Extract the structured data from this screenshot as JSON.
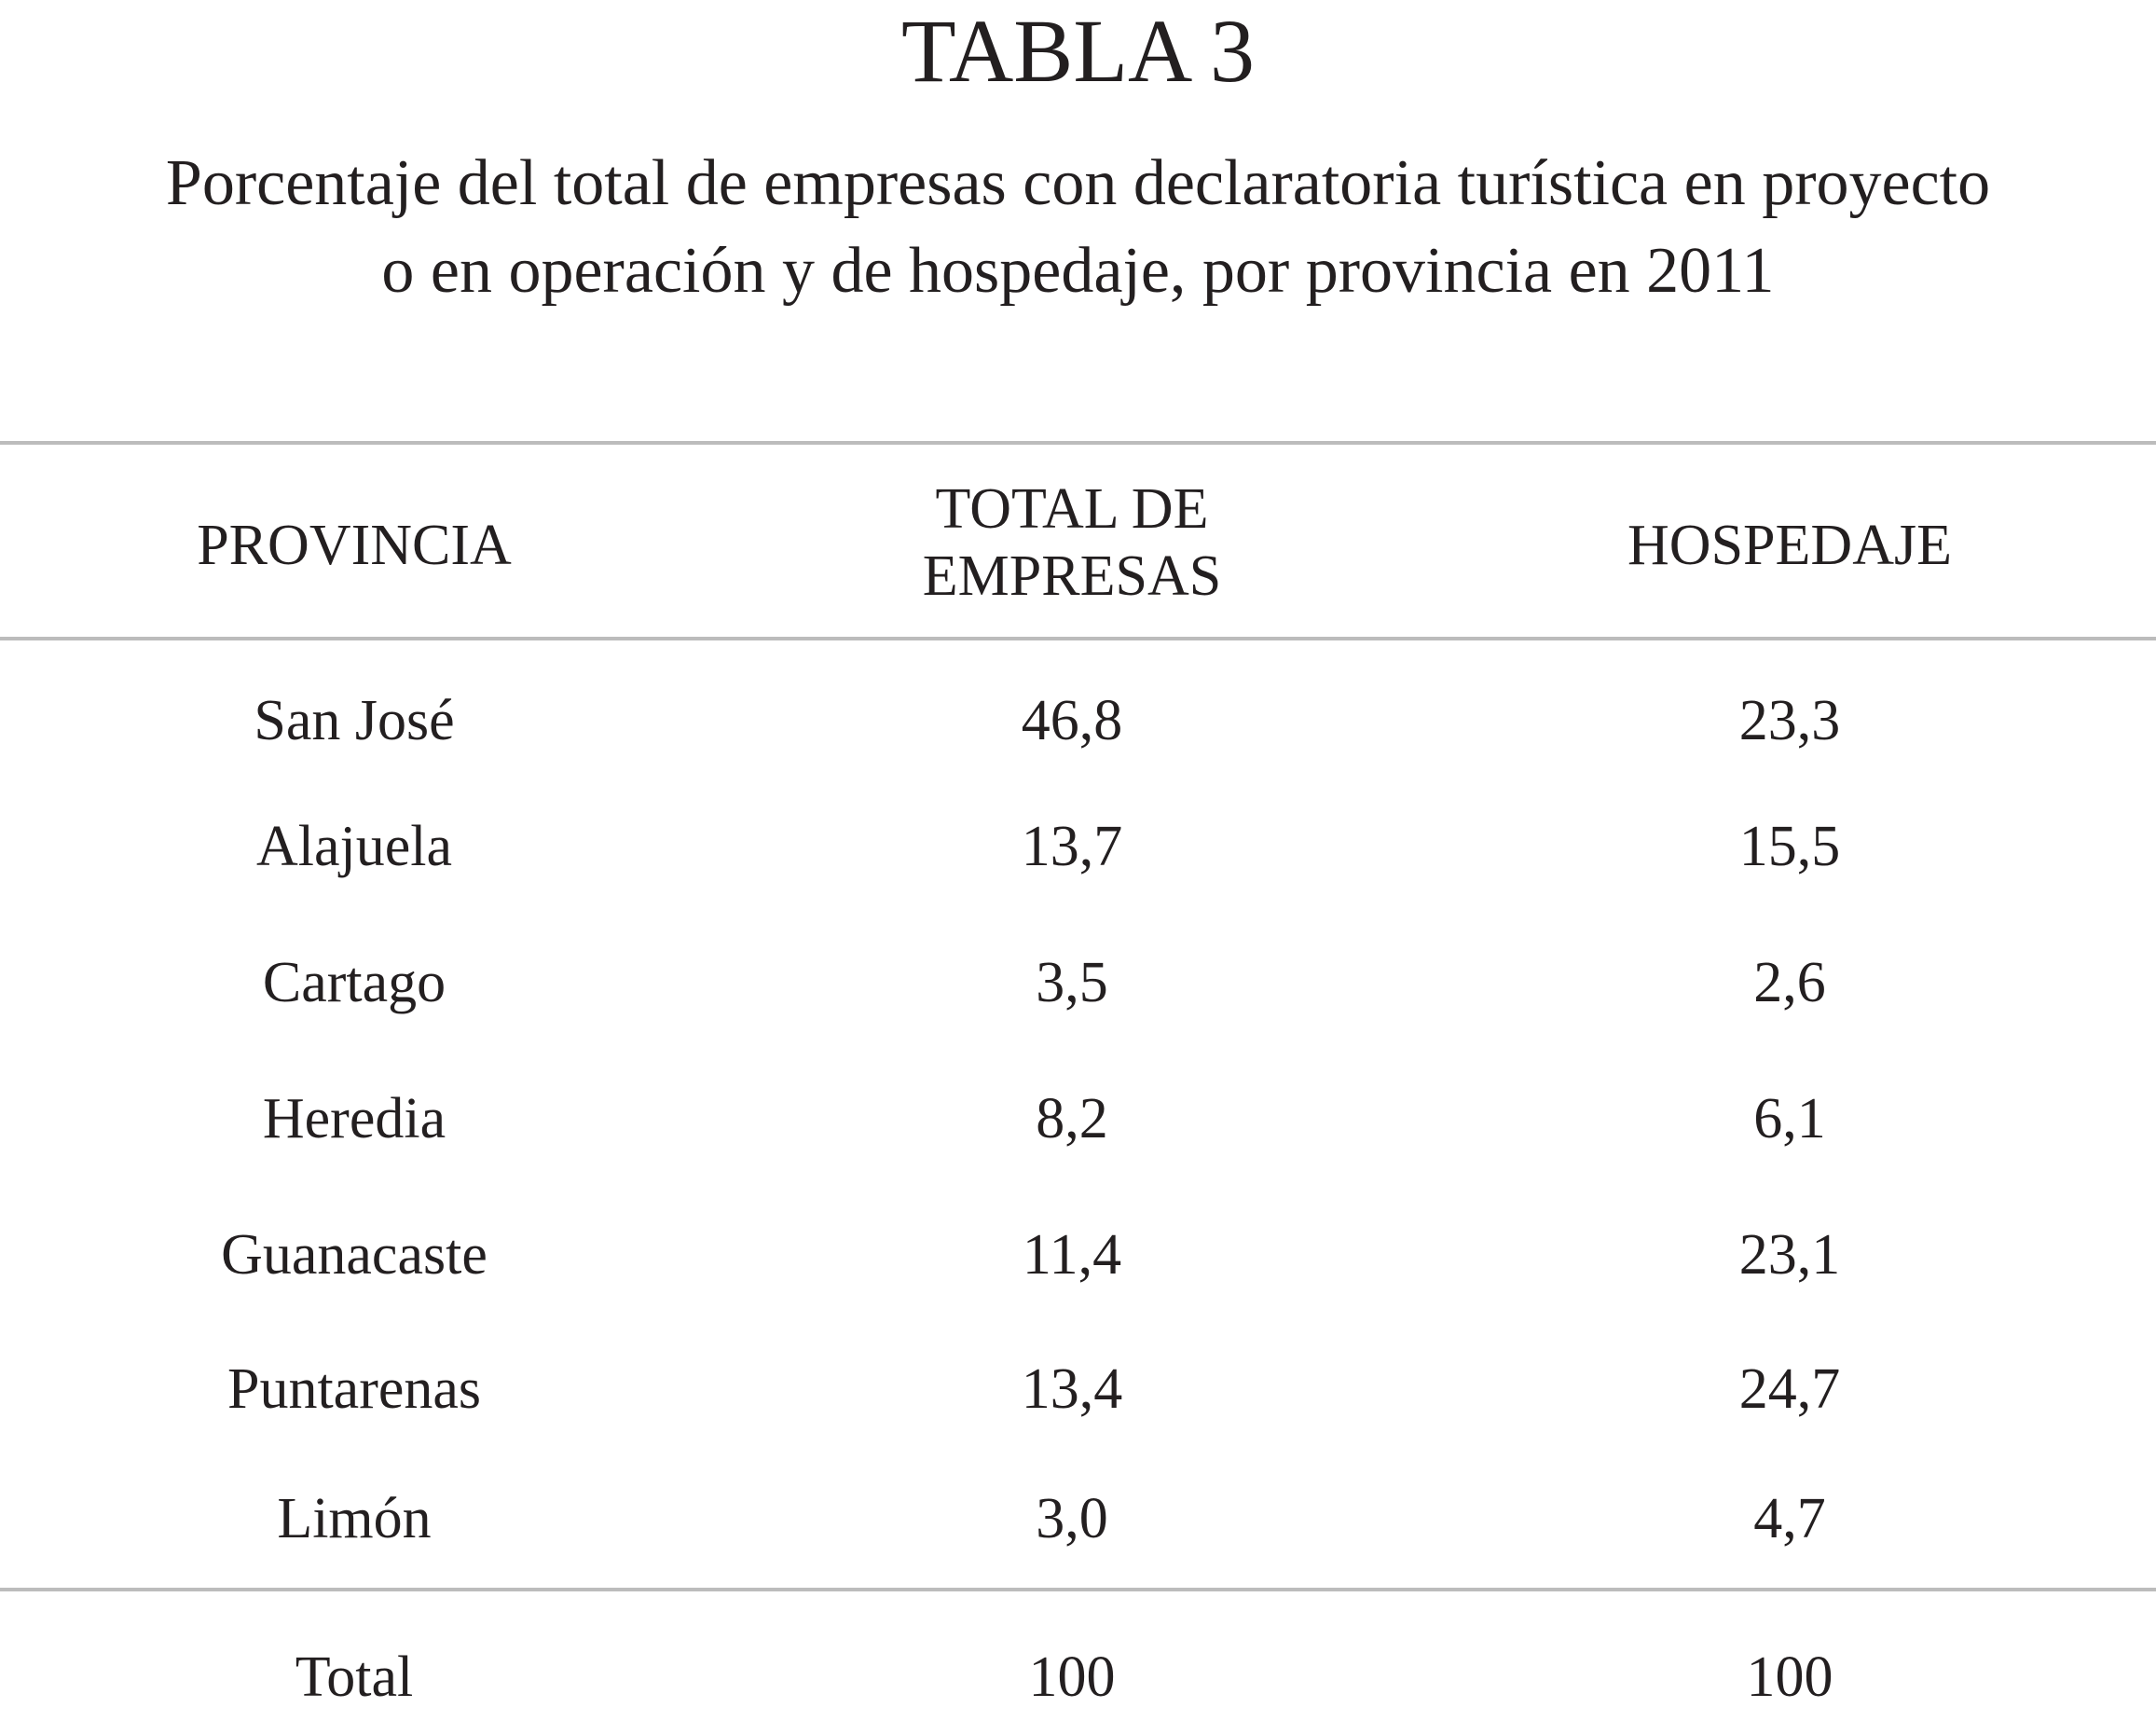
{
  "title": "TABLA 3",
  "subtitle_line1": "Porcentaje del total de empresas con declaratoria turística en proyecto",
  "subtitle_line2": "o en operación y de hospedaje, por provincia en 2011",
  "table": {
    "headers": {
      "provincia": "PROVINCIA",
      "total_line1": "TOTAL DE",
      "total_line2": "EMPRESAS",
      "hospedaje": "HOSPEDAJE"
    },
    "rows": [
      {
        "provincia": "San José",
        "total": "46,8",
        "hospedaje": "23,3"
      },
      {
        "provincia": "Alajuela",
        "total": "13,7",
        "hospedaje": "15,5"
      },
      {
        "provincia": "Cartago",
        "total": "3,5",
        "hospedaje": "2,6"
      },
      {
        "provincia": "Heredia",
        "total": "8,2",
        "hospedaje": "6,1"
      },
      {
        "provincia": "Guanacaste",
        "total": "11,4",
        "hospedaje": "23,1"
      },
      {
        "provincia": "Puntarenas",
        "total": "13,4",
        "hospedaje": "24,7"
      },
      {
        "provincia": "Limón",
        "total": "3,0",
        "hospedaje": "4,7"
      }
    ],
    "total_row": {
      "provincia": "Total",
      "total": "100",
      "hospedaje": "100"
    }
  }
}
